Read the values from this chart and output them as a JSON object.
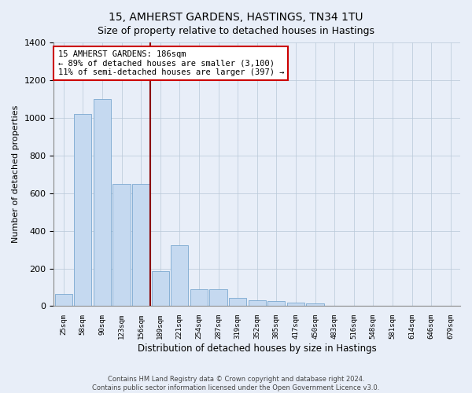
{
  "title": "15, AMHERST GARDENS, HASTINGS, TN34 1TU",
  "subtitle": "Size of property relative to detached houses in Hastings",
  "xlabel": "Distribution of detached houses by size in Hastings",
  "ylabel": "Number of detached properties",
  "categories": [
    "25sqm",
    "58sqm",
    "90sqm",
    "123sqm",
    "156sqm",
    "189sqm",
    "221sqm",
    "254sqm",
    "287sqm",
    "319sqm",
    "352sqm",
    "385sqm",
    "417sqm",
    "450sqm",
    "483sqm",
    "516sqm",
    "548sqm",
    "581sqm",
    "614sqm",
    "646sqm",
    "679sqm"
  ],
  "values": [
    65,
    1020,
    1100,
    650,
    650,
    185,
    325,
    90,
    90,
    45,
    30,
    25,
    20,
    15,
    0,
    0,
    0,
    0,
    0,
    0,
    0
  ],
  "bar_color": "#c5d9f0",
  "bar_edge_color": "#7aa8d0",
  "vline_color": "#8b0000",
  "annotation_title": "15 AMHERST GARDENS: 186sqm",
  "annotation_line1": "← 89% of detached houses are smaller (3,100)",
  "annotation_line2": "11% of semi-detached houses are larger (397) →",
  "annotation_box_facecolor": "#ffffff",
  "annotation_box_edgecolor": "#cc0000",
  "ylim": [
    0,
    1400
  ],
  "yticks": [
    0,
    200,
    400,
    600,
    800,
    1000,
    1200,
    1400
  ],
  "footer1": "Contains HM Land Registry data © Crown copyright and database right 2024.",
  "footer2": "Contains public sector information licensed under the Open Government Licence v3.0.",
  "bg_color": "#e8eef8",
  "plot_bg_color": "#e8eef8"
}
